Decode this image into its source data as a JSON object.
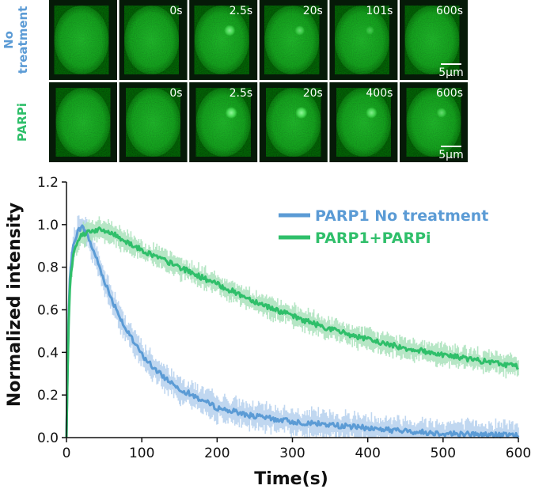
{
  "micrographs": {
    "rows": [
      {
        "label_lines": [
          "No",
          "treatment"
        ],
        "label_color": "#5b9bd5",
        "frames": [
          "",
          "0s",
          "2.5s",
          "20s",
          "101s",
          "600s"
        ],
        "spot_strength": [
          0,
          0,
          0.8,
          0.6,
          0.4,
          0
        ],
        "scale_bar": "5µm"
      },
      {
        "label_lines": [
          "PARPi"
        ],
        "label_color": "#2fbf6a",
        "frames": [
          "",
          "0s",
          "2.5s",
          "20s",
          "400s",
          "600s"
        ],
        "spot_strength": [
          0,
          0,
          0.9,
          0.9,
          0.8,
          0.6
        ],
        "scale_bar": "5µm"
      }
    ]
  },
  "chart_data": {
    "type": "line",
    "xlabel": "Time(s)",
    "ylabel": "Normalized intensity",
    "xlim": [
      0,
      600
    ],
    "ylim": [
      0,
      1.2
    ],
    "xticks": [
      "0",
      "100",
      "200",
      "300",
      "400",
      "500",
      "600"
    ],
    "yticks": [
      "0.0",
      "0.2",
      "0.4",
      "0.6",
      "0.8",
      "1.0",
      "1.2"
    ],
    "legend_position": "top-right",
    "series": [
      {
        "name": "PARP1 No treatment",
        "color": "#5b9bd5",
        "band_color": "#b9d3ee",
        "x": [
          0,
          2.5,
          5,
          10,
          15,
          20,
          25,
          30,
          40,
          50,
          60,
          80,
          100,
          120,
          150,
          200,
          250,
          300,
          350,
          400,
          450,
          500,
          550,
          600
        ],
        "y": [
          0.0,
          0.55,
          0.78,
          0.92,
          0.97,
          0.99,
          0.97,
          0.93,
          0.84,
          0.74,
          0.65,
          0.5,
          0.39,
          0.31,
          0.23,
          0.14,
          0.1,
          0.075,
          0.06,
          0.045,
          0.03,
          0.02,
          0.015,
          0.01
        ],
        "band": 0.05
      },
      {
        "name": "PARP1+PARPi",
        "color": "#2fbf6a",
        "band_color": "#aee3bf",
        "x": [
          0,
          2.5,
          5,
          10,
          15,
          20,
          30,
          40,
          50,
          60,
          80,
          100,
          150,
          200,
          250,
          300,
          350,
          400,
          450,
          500,
          550,
          600
        ],
        "y": [
          0.0,
          0.5,
          0.75,
          0.88,
          0.93,
          0.95,
          0.97,
          0.975,
          0.97,
          0.96,
          0.92,
          0.88,
          0.8,
          0.72,
          0.64,
          0.57,
          0.51,
          0.46,
          0.42,
          0.39,
          0.36,
          0.335
        ],
        "band": 0.04
      }
    ]
  }
}
